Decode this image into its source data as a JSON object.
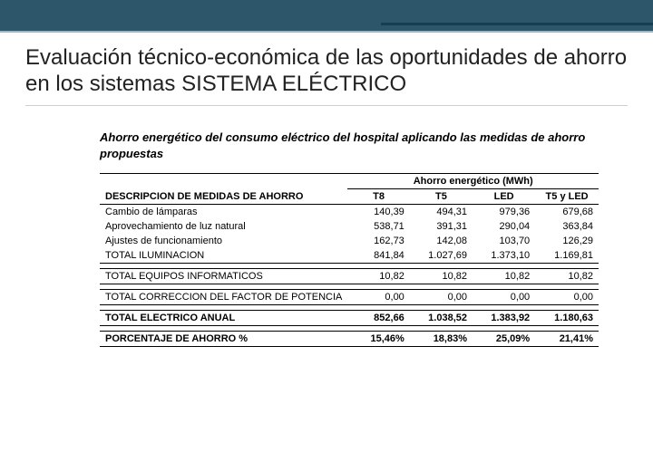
{
  "title": "Evaluación técnico-económica de las oportunidades de ahorro en los sistemas SISTEMA ELÉCTRICO",
  "table": {
    "caption": "Ahorro energético del consumo eléctrico del hospital aplicando las medidas de ahorro propuestas",
    "group_header": "Ahorro energético (MWh)",
    "columns": [
      "DESCRIPCION DE MEDIDAS DE AHORRO",
      "T8",
      "T5",
      "LED",
      "T5 y LED"
    ],
    "rows": [
      {
        "label": "Cambio de lámparas",
        "v": [
          "140,39",
          "494,31",
          "979,36",
          "679,68"
        ]
      },
      {
        "label": "Aprovechamiento de luz natural",
        "v": [
          "538,71",
          "391,31",
          "290,04",
          "363,84"
        ]
      },
      {
        "label": "Ajustes de funcionamiento",
        "v": [
          "162,73",
          "142,08",
          "103,70",
          "126,29"
        ]
      },
      {
        "label": "TOTAL ILUMINACION",
        "v": [
          "841,84",
          "1.027,69",
          "1.373,10",
          "1.169,81"
        ]
      }
    ],
    "total_equipos": {
      "label": "TOTAL EQUIPOS INFORMATICOS",
      "v": [
        "10,82",
        "10,82",
        "10,82",
        "10,82"
      ]
    },
    "total_correccion": {
      "label": "TOTAL CORRECCION DEL FACTOR DE POTENCIA",
      "v": [
        "0,00",
        "0,00",
        "0,00",
        "0,00"
      ]
    },
    "total_anual": {
      "label": "TOTAL ELECTRICO ANUAL",
      "v": [
        "852,66",
        "1.038,52",
        "1.383,92",
        "1.180,63"
      ]
    },
    "porcentaje": {
      "label": "PORCENTAJE DE AHORRO %",
      "v": [
        "15,46%",
        "18,83%",
        "25,09%",
        "21,41%"
      ]
    }
  }
}
